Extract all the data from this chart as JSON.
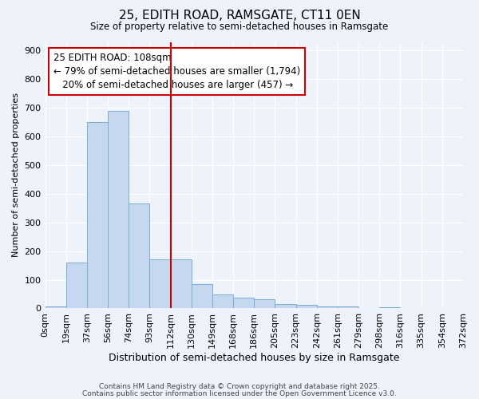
{
  "title1": "25, EDITH ROAD, RAMSGATE, CT11 0EN",
  "title2": "Size of property relative to semi-detached houses in Ramsgate",
  "xlabel": "Distribution of semi-detached houses by size in Ramsgate",
  "ylabel": "Number of semi-detached properties",
  "bar_values": [
    8,
    160,
    650,
    690,
    365,
    170,
    170,
    85,
    50,
    38,
    32,
    14,
    12,
    8,
    6,
    0,
    4,
    0,
    0,
    0
  ],
  "bin_labels": [
    "0sqm",
    "19sqm",
    "37sqm",
    "56sqm",
    "74sqm",
    "93sqm",
    "112sqm",
    "130sqm",
    "149sqm",
    "168sqm",
    "186sqm",
    "205sqm",
    "223sqm",
    "242sqm",
    "261sqm",
    "279sqm",
    "298sqm",
    "316sqm",
    "335sqm",
    "354sqm",
    "372sqm"
  ],
  "bar_color": "#c5d8f0",
  "bar_edge_color": "#7aadd4",
  "vline_color": "#cc0000",
  "annotation_line1": "25 EDITH ROAD: 108sqm",
  "annotation_line2": "← 79% of semi-detached houses are smaller (1,794)",
  "annotation_line3": "   20% of semi-detached houses are larger (457) →",
  "annotation_box_edge_color": "#cc0000",
  "ylim": [
    0,
    930
  ],
  "yticks": [
    0,
    100,
    200,
    300,
    400,
    500,
    600,
    700,
    800,
    900
  ],
  "background_color": "#eef2fb",
  "grid_color": "#ffffff",
  "footer1": "Contains HM Land Registry data © Crown copyright and database right 2025.",
  "footer2": "Contains public sector information licensed under the Open Government Licence v3.0."
}
